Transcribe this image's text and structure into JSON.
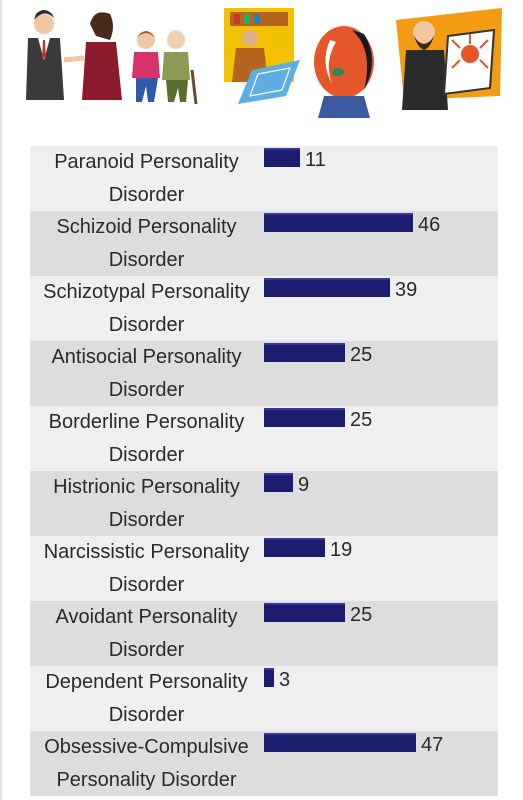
{
  "banner": {
    "icons": [
      "couple-talking-icon",
      "elderly-pair-icon",
      "figure-with-blueprint-icon",
      "face-profile-icon",
      "artist-easel-icon"
    ]
  },
  "colors": {
    "bar": "#1c1c6e",
    "row_light": "#efefef",
    "row_dark": "#dddddd"
  },
  "chart_data": {
    "type": "bar",
    "orientation": "horizontal",
    "categories": [
      [
        "Paranoid Personality",
        "Disorder"
      ],
      [
        "Schizoid Personality",
        "Disorder"
      ],
      [
        "Schizotypal Personality",
        "Disorder"
      ],
      [
        "Antisocial Personality",
        "Disorder"
      ],
      [
        "Borderline Personality",
        "Disorder"
      ],
      [
        "Histrionic Personality",
        "Disorder"
      ],
      [
        "Narcissistic Personality",
        "Disorder"
      ],
      [
        "Avoidant Personality",
        "Disorder"
      ],
      [
        "Dependent Personality",
        "Disorder"
      ],
      [
        "Obsessive-Compulsive",
        "Personality Disorder"
      ]
    ],
    "values": [
      11,
      46,
      39,
      25,
      25,
      9,
      19,
      25,
      3,
      47
    ],
    "value_labels": [
      "11",
      "46",
      "39",
      "25",
      "25",
      "9",
      "19",
      "25",
      "3",
      "47"
    ],
    "xlim": [
      0,
      47
    ],
    "grid": false,
    "legend": "none"
  }
}
